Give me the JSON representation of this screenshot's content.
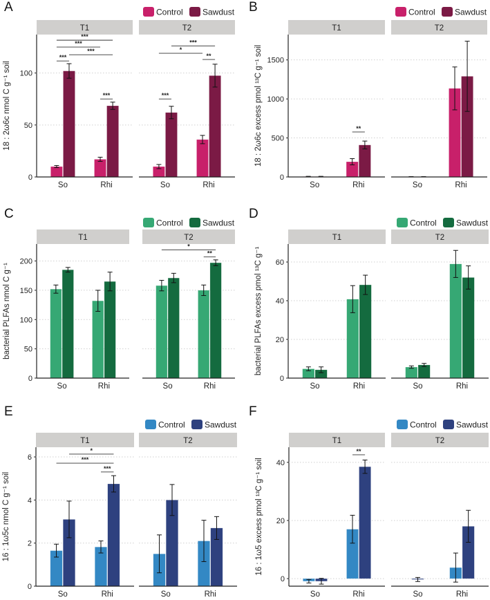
{
  "chart_data": [
    {
      "panel_label": "A",
      "type": "bar",
      "facets": [
        "T1",
        "T2"
      ],
      "categories": [
        "So",
        "Rhi"
      ],
      "ylabel": "18 : 2ω6c nmol C g⁻¹ soil",
      "ylim": [
        0,
        137
      ],
      "yticks": [
        0,
        50,
        100
      ],
      "grid": true,
      "legend_position": "top-right",
      "series": [
        {
          "name": "Control",
          "color": "#c8206a",
          "values": [
            [
              10,
              17
            ],
            [
              10,
              36
            ]
          ],
          "errors": [
            [
              1,
              2
            ],
            [
              2,
              4
            ]
          ]
        },
        {
          "name": "Sawdust",
          "color": "#7b1a45",
          "values": [
            [
              102,
              68.5
            ],
            [
              62,
              97.5
            ]
          ],
          "errors": [
            [
              7,
              3.5
            ],
            [
              6,
              11
            ]
          ]
        }
      ],
      "significance": [
        {
          "facet": 0,
          "from": [
            0,
            0
          ],
          "to": [
            1,
            1
          ],
          "y": 131.6,
          "label": "***"
        },
        {
          "facet": 0,
          "from": [
            0,
            0
          ],
          "to": [
            1,
            0
          ],
          "y": 125,
          "label": "***"
        },
        {
          "facet": 0,
          "from": [
            0,
            1
          ],
          "to": [
            1,
            1
          ],
          "y": 117.6,
          "label": "***"
        },
        {
          "facet": 0,
          "from": [
            0,
            0
          ],
          "to": [
            0,
            1
          ],
          "y": 111.6,
          "label": "***"
        },
        {
          "facet": 0,
          "from": [
            1,
            0
          ],
          "to": [
            1,
            1
          ],
          "y": 75,
          "label": "***"
        },
        {
          "facet": 1,
          "from": [
            0,
            1
          ],
          "to": [
            1,
            1
          ],
          "y": 126,
          "label": "***"
        },
        {
          "facet": 1,
          "from": [
            0,
            0
          ],
          "to": [
            1,
            0
          ],
          "y": 119,
          "label": "*"
        },
        {
          "facet": 1,
          "from": [
            1,
            0
          ],
          "to": [
            1,
            1
          ],
          "y": 113,
          "label": "**"
        },
        {
          "facet": 1,
          "from": [
            0,
            0
          ],
          "to": [
            0,
            1
          ],
          "y": 75,
          "label": "***"
        }
      ]
    },
    {
      "panel_label": "B",
      "type": "bar",
      "facets": [
        "T1",
        "T2"
      ],
      "categories": [
        "So",
        "Rhi"
      ],
      "ylabel": "18 : 2ω6c excess pmol ¹³C g⁻¹ soil",
      "ylim": [
        0,
        1825
      ],
      "yticks": [
        0,
        500,
        1000,
        1500
      ],
      "grid": true,
      "legend_position": "top-right",
      "series": [
        {
          "name": "Control",
          "color": "#c8206a",
          "values": [
            [
              5,
              195
            ],
            [
              3,
              1135
            ]
          ],
          "errors": [
            [
              3,
              40
            ],
            [
              2,
              275
            ]
          ]
        },
        {
          "name": "Sawdust",
          "color": "#7b1a45",
          "values": [
            [
              5,
              410
            ],
            [
              3,
              1290
            ]
          ],
          "errors": [
            [
              3,
              50
            ],
            [
              2,
              450
            ]
          ]
        }
      ],
      "significance": [
        {
          "facet": 0,
          "from": [
            1,
            0
          ],
          "to": [
            1,
            1
          ],
          "y": 576,
          "label": "**"
        }
      ]
    },
    {
      "panel_label": "C",
      "type": "bar",
      "facets": [
        "T1",
        "T2"
      ],
      "categories": [
        "So",
        "Rhi"
      ],
      "ylabel": "bacterial PLFAs nmol C g⁻¹",
      "ylim": [
        0,
        229
      ],
      "yticks": [
        0,
        50,
        100,
        150,
        200
      ],
      "grid": true,
      "legend_position": "top-right",
      "series": [
        {
          "name": "Control",
          "color": "#36a874",
          "values": [
            [
              152,
              132
            ],
            [
              158,
              150
            ]
          ],
          "errors": [
            [
              7,
              18
            ],
            [
              9,
              9
            ]
          ]
        },
        {
          "name": "Sawdust",
          "color": "#146b3f",
          "values": [
            [
              185,
              165
            ],
            [
              171,
              197
            ]
          ],
          "errors": [
            [
              4,
              16
            ],
            [
              8,
              5
            ]
          ]
        }
      ],
      "significance": [
        {
          "facet": 1,
          "from": [
            0,
            0
          ],
          "to": [
            1,
            1
          ],
          "y": 219,
          "label": "*"
        },
        {
          "facet": 1,
          "from": [
            1,
            0
          ],
          "to": [
            1,
            1
          ],
          "y": 207,
          "label": "**"
        }
      ]
    },
    {
      "panel_label": "D",
      "type": "bar",
      "facets": [
        "T1",
        "T2"
      ],
      "categories": [
        "So",
        "Rhi"
      ],
      "ylabel": "bacterial PLFAs excess pmol ¹³C g⁻¹",
      "ylim": [
        0,
        69.3
      ],
      "yticks": [
        0,
        20,
        40,
        60
      ],
      "grid": true,
      "legend_position": "top-right",
      "series": [
        {
          "name": "Control",
          "color": "#36a874",
          "values": [
            [
              4.8,
              40.8
            ],
            [
              5.7,
              59
            ]
          ],
          "errors": [
            [
              1,
              7
            ],
            [
              0.6,
              7
            ]
          ]
        },
        {
          "name": "Sawdust",
          "color": "#146b3f",
          "values": [
            [
              4.3,
              48.2
            ],
            [
              6.8,
              52
            ]
          ],
          "errors": [
            [
              1.5,
              5
            ],
            [
              0.8,
              6
            ]
          ]
        }
      ],
      "significance": []
    },
    {
      "panel_label": "E",
      "type": "bar",
      "facets": [
        "T1",
        "T2"
      ],
      "categories": [
        "So",
        "Rhi"
      ],
      "ylabel": "16 : 1ω5c nmol C g⁻¹ soil",
      "ylim": [
        0,
        6.45
      ],
      "yticks": [
        0,
        2,
        4,
        6
      ],
      "grid": true,
      "legend_position": "top-right",
      "series": [
        {
          "name": "Control",
          "color": "#3388c4",
          "values": [
            [
              1.65,
              1.82
            ],
            [
              1.5,
              2.1
            ]
          ],
          "errors": [
            [
              0.3,
              0.28
            ],
            [
              0.88,
              0.96
            ]
          ]
        },
        {
          "name": "Sawdust",
          "color": "#2e417f",
          "values": [
            [
              3.1,
              4.75
            ],
            [
              4.0,
              2.7
            ]
          ],
          "errors": [
            [
              0.85,
              0.38
            ],
            [
              0.72,
              0.53
            ]
          ]
        }
      ],
      "significance": [
        {
          "facet": 0,
          "from": [
            0,
            1
          ],
          "to": [
            1,
            1
          ],
          "y": 6.13,
          "label": "*"
        },
        {
          "facet": 0,
          "from": [
            0,
            0
          ],
          "to": [
            1,
            1
          ],
          "y": 5.71,
          "label": "***"
        },
        {
          "facet": 0,
          "from": [
            1,
            0
          ],
          "to": [
            1,
            1
          ],
          "y": 5.3,
          "label": "***"
        }
      ]
    },
    {
      "panel_label": "F",
      "type": "bar",
      "facets": [
        "T1",
        "T2"
      ],
      "categories": [
        "So",
        "Rhi"
      ],
      "ylabel": "16 : 1ω5 excess pmol ¹³C g⁻¹ soil",
      "ylim": [
        -2.6,
        45.2
      ],
      "yticks": [
        0,
        20,
        40
      ],
      "grid": true,
      "legend_position": "top-right",
      "series": [
        {
          "name": "Control",
          "color": "#3388c4",
          "values": [
            [
              -0.9,
              17
            ],
            [
              null,
              3.8
            ]
          ],
          "errors": [
            [
              0.6,
              4.8
            ],
            [
              null,
              5
            ]
          ]
        },
        {
          "name": "Sawdust",
          "color": "#2e417f",
          "values": [
            [
              -0.9,
              38.5
            ],
            [
              -0.3,
              18
            ]
          ],
          "errors": [
            [
              1.0,
              2.3
            ],
            [
              0.7,
              5.5
            ]
          ]
        }
      ],
      "significance": [
        {
          "facet": 0,
          "from": [
            1,
            0
          ],
          "to": [
            1,
            1
          ],
          "y": 42.6,
          "label": "**"
        }
      ]
    }
  ]
}
